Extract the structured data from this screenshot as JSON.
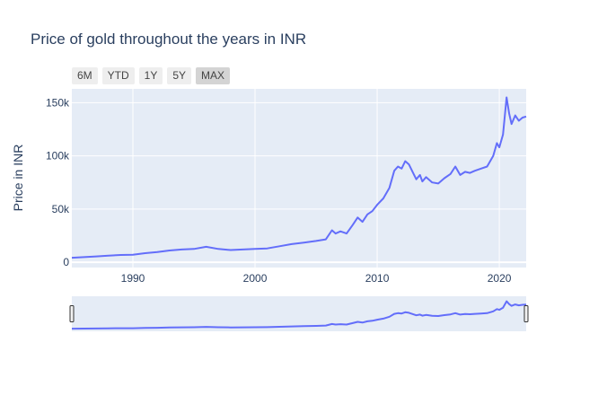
{
  "colors": {
    "plot_bg": "#e5ecf6",
    "grid": "#ffffff",
    "line": "#636efa",
    "text": "#2a3f5f",
    "button_bg": "#eeeeee",
    "button_active_bg": "#d4d4d4"
  },
  "range_selector": {
    "buttons": [
      "6M",
      "YTD",
      "1Y",
      "5Y",
      "MAX"
    ],
    "active": "MAX"
  },
  "chart_data": {
    "type": "line",
    "title": "Price of gold throughout the years in INR",
    "xlabel": "",
    "ylabel": "Price in INR",
    "x_ticks": [
      "1990",
      "2000",
      "2010",
      "2020"
    ],
    "y_ticks": [
      "0",
      "50k",
      "100k",
      "150k"
    ],
    "xlim": [
      1985.0,
      2022.2
    ],
    "ylim": [
      -5000,
      163000
    ],
    "grid": true,
    "legend": "none",
    "range_slider": true,
    "series": [
      {
        "x": [
          1985.0,
          1986.0,
          1987.0,
          1988.0,
          1989.0,
          1990.0,
          1991.0,
          1992.0,
          1993.0,
          1994.0,
          1995.0,
          1996.0,
          1997.0,
          1998.0,
          1999.0,
          2000.0,
          2001.0,
          2002.0,
          2003.0,
          2004.0,
          2005.0,
          2005.8,
          2006.3,
          2006.6,
          2007.0,
          2007.5,
          2008.0,
          2008.4,
          2008.8,
          2009.2,
          2009.6,
          2010.0,
          2010.5,
          2011.0,
          2011.4,
          2011.7,
          2012.0,
          2012.3,
          2012.6,
          2012.9,
          2013.2,
          2013.5,
          2013.7,
          2014.0,
          2014.5,
          2015.0,
          2015.5,
          2016.0,
          2016.4,
          2016.8,
          2017.2,
          2017.6,
          2018.0,
          2018.5,
          2019.0,
          2019.5,
          2019.8,
          2020.0,
          2020.3,
          2020.6,
          2020.8,
          2021.0,
          2021.3,
          2021.6,
          2021.9,
          2022.2
        ],
        "y": [
          4200,
          4800,
          5500,
          6200,
          6800,
          7000,
          8500,
          9500,
          11000,
          12000,
          12500,
          14500,
          12500,
          11500,
          12000,
          12500,
          13000,
          15000,
          17000,
          18500,
          20000,
          21500,
          30000,
          27000,
          29000,
          27000,
          35000,
          42000,
          38000,
          45000,
          48000,
          54000,
          60000,
          70000,
          86000,
          90000,
          88000,
          95000,
          92000,
          85000,
          78000,
          82000,
          76000,
          80000,
          75000,
          74000,
          79000,
          83000,
          90000,
          82000,
          85000,
          84000,
          86000,
          88000,
          90000,
          100000,
          112000,
          108000,
          120000,
          155000,
          140000,
          130000,
          138000,
          133000,
          136000,
          137000
        ]
      }
    ]
  }
}
